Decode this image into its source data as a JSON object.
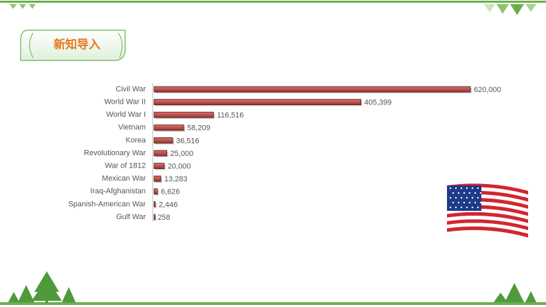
{
  "header": {
    "title": "新知导入"
  },
  "chart_data": {
    "type": "bar",
    "orientation": "horizontal",
    "categories": [
      "Civil War",
      "World War II",
      "World War I",
      "Vietnam",
      "Korea",
      "Revolutionary War",
      "War of 1812",
      "Mexican War",
      "Iraq-Afghanistan",
      "Spanish-American War",
      "Gulf War"
    ],
    "values": [
      620000,
      405399,
      116516,
      58209,
      36516,
      25000,
      20000,
      13283,
      6626,
      2446,
      258
    ],
    "value_labels": [
      "620,000",
      "405,399",
      "116,516",
      "58,209",
      "36,516",
      "25,000",
      "20,000",
      "13,283",
      "6,626",
      "2,446",
      "258"
    ],
    "color": "#c0504d"
  }
}
